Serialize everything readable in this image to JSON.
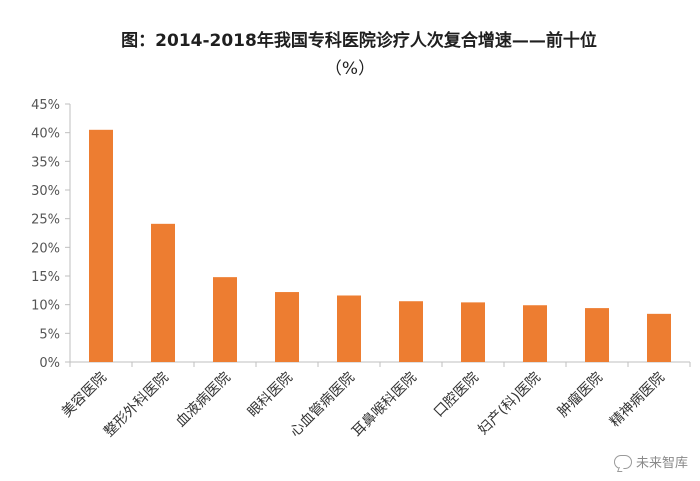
{
  "chart_data": {
    "type": "bar",
    "title": "图：2014-2018年我国专科医院诊疗人次复合增速——前十位",
    "subtitle": "（%）",
    "categories": [
      "美容医院",
      "整形外科医院",
      "血液病医院",
      "眼科医院",
      "心血管病医院",
      "耳鼻喉科医院",
      "口腔医院",
      "妇产(科)医院",
      "肿瘤医院",
      "精神病医院"
    ],
    "values": [
      40.5,
      24.1,
      14.8,
      12.2,
      11.6,
      10.6,
      10.4,
      9.9,
      9.4,
      8.4
    ],
    "ylim": [
      0,
      45
    ],
    "yticks": [
      "0%",
      "5%",
      "10%",
      "15%",
      "20%",
      "25%",
      "30%",
      "35%",
      "40%",
      "45%"
    ],
    "grid": false,
    "bar_color": "#ED7D31",
    "axis_color": "#BFBFBF"
  },
  "watermark": {
    "text": "未来智库",
    "icon": "wechat-icon"
  }
}
